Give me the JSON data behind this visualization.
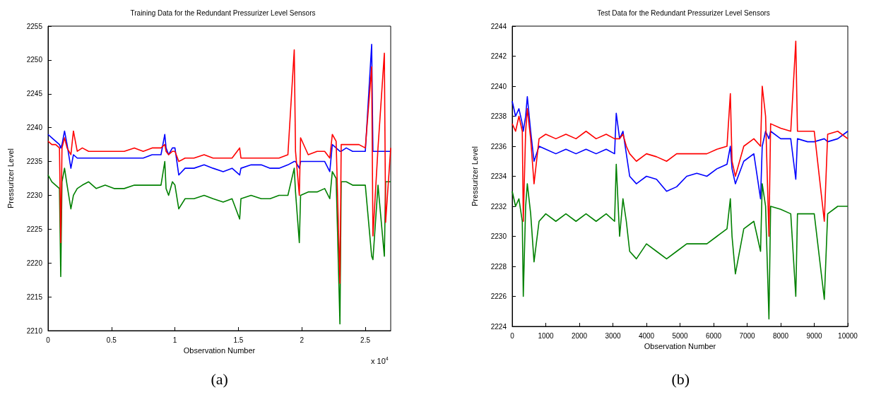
{
  "chart_data": [
    {
      "type": "line",
      "title": "Training Data for the Redundant Pressurizer Level Sensors",
      "xlabel": "Observation Number",
      "ylabel": "Pressurizer Level",
      "annotations": [
        "x 10$^{4}$",
        "(a)"
      ],
      "x": [
        0,
        0.03,
        0.06,
        0.09,
        0.1,
        0.11,
        0.13,
        0.15,
        0.18,
        0.2,
        0.23,
        0.27,
        0.32,
        0.38,
        0.45,
        0.52,
        0.6,
        0.68,
        0.75,
        0.82,
        0.89,
        0.92,
        0.93,
        0.95,
        0.98,
        1,
        1.03,
        1.08,
        1.15,
        1.23,
        1.3,
        1.38,
        1.45,
        1.51,
        1.52,
        1.6,
        1.68,
        1.75,
        1.82,
        1.89,
        1.94,
        1.95,
        1.98,
        1.99,
        2.05,
        2.12,
        2.18,
        2.22,
        2.24,
        2.27,
        2.3,
        2.31,
        2.35,
        2.4,
        2.45,
        2.5,
        2.55,
        2.56,
        2.6,
        2.65,
        2.66,
        2.7
      ],
      "series": [
        {
          "color": "#008000",
          "values": [
            2233,
            2232,
            2231.5,
            2231,
            2218,
            2232,
            2234,
            2231.5,
            2228,
            2230,
            2231,
            2231.5,
            2232,
            2231,
            2231.5,
            2231,
            2231,
            2231.5,
            2231.5,
            2231.5,
            2231.5,
            2235,
            2231,
            2230,
            2232,
            2231.5,
            2228,
            2229.5,
            2229.5,
            2230,
            2229.5,
            2229,
            2229.5,
            2226.5,
            2229.5,
            2230,
            2229.5,
            2229.5,
            2230,
            2230,
            2234,
            2230.5,
            2223,
            2230,
            2230.5,
            2230.5,
            2231,
            2229.5,
            2233.5,
            2232.5,
            2211,
            2232,
            2232,
            2231.5,
            2231.5,
            2231.5,
            2221,
            2220.5,
            2231.5,
            2221,
            2232,
            2232
          ]
        },
        {
          "color": "#0000ff",
          "values": [
            2239,
            2238.5,
            2238,
            2237.5,
            2237,
            2237.5,
            2239.5,
            2237.5,
            2234,
            2236,
            2235.5,
            2235.5,
            2235.5,
            2235.5,
            2235.5,
            2235.5,
            2235.5,
            2235.5,
            2235.5,
            2236,
            2236,
            2239,
            2237,
            2236,
            2237,
            2237,
            2233,
            2234,
            2234,
            2234.5,
            2234,
            2233.5,
            2234,
            2233,
            2234,
            2234.5,
            2234.5,
            2234,
            2234,
            2234.5,
            2235,
            2235,
            2234,
            2235,
            2235,
            2235,
            2235,
            2233.5,
            2237.5,
            2237,
            2236.5,
            2236.5,
            2237,
            2236.5,
            2236.5,
            2236.5,
            2252.3,
            2236.5,
            2236.5,
            2236.5,
            2236.5,
            2236.5
          ]
        },
        {
          "color": "#ff0000",
          "values": [
            2238,
            2237.5,
            2237.5,
            2237,
            2223,
            2237,
            2238.5,
            2237,
            2236,
            2239.5,
            2236.5,
            2237,
            2236.5,
            2236.5,
            2236.5,
            2236.5,
            2236.5,
            2237,
            2236.5,
            2237,
            2237,
            2237.5,
            2236.5,
            2236,
            2236.5,
            2236.5,
            2235,
            2235.5,
            2235.5,
            2236,
            2235.5,
            2235.5,
            2235.5,
            2237,
            2235.5,
            2235.5,
            2235.5,
            2235.5,
            2235.5,
            2236,
            2251.5,
            2236.5,
            2230,
            2238.5,
            2236,
            2236.5,
            2236.5,
            2235.5,
            2239,
            2238,
            2217,
            2237.5,
            2237.5,
            2237.5,
            2237.5,
            2237,
            2249,
            2224,
            2237,
            2251,
            2226,
            2237
          ]
        }
      ],
      "xlim": [
        0,
        2.7
      ],
      "xticks": [
        0,
        0.5,
        1,
        1.5,
        2,
        2.5
      ],
      "ylim": [
        2210,
        2255
      ],
      "yticks": [
        2210,
        2215,
        2220,
        2225,
        2230,
        2235,
        2240,
        2245,
        2250,
        2255
      ],
      "marker": "none",
      "line_style": "solid"
    },
    {
      "type": "line",
      "title": "Test Data for the Redundant Pressurizer Level Sensors",
      "xlabel": "Observation Number",
      "ylabel": "Pressurizer Level",
      "annotations": [
        "(b)"
      ],
      "x": [
        0,
        100,
        200,
        300,
        330,
        400,
        450,
        550,
        650,
        800,
        1000,
        1300,
        1600,
        1900,
        2200,
        2500,
        2800,
        3050,
        3100,
        3200,
        3300,
        3400,
        3500,
        3700,
        4000,
        4300,
        4600,
        4900,
        5200,
        5500,
        5800,
        6100,
        6400,
        6500,
        6550,
        6650,
        6900,
        7200,
        7400,
        7450,
        7550,
        7650,
        7700,
        8000,
        8300,
        8450,
        8500,
        8800,
        9000,
        9300,
        9400,
        9700,
        10000
      ],
      "series": [
        {
          "color": "#008000",
          "values": [
            2233,
            2232,
            2232.5,
            2231,
            2226,
            2232,
            2233.5,
            2231.5,
            2228.3,
            2231,
            2231.5,
            2231,
            2231.5,
            2231,
            2231.5,
            2231,
            2231.5,
            2231,
            2234.8,
            2230,
            2232.5,
            2231,
            2229,
            2228.5,
            2229.5,
            2229,
            2228.5,
            2229,
            2229.5,
            2229.5,
            2229.5,
            2230,
            2230.5,
            2232.5,
            2230,
            2227.5,
            2230.5,
            2231,
            2229,
            2233.5,
            2232,
            2224.5,
            2232,
            2231.8,
            2231.5,
            2226,
            2231.5,
            2231.5,
            2231.5,
            2225.8,
            2231.5,
            2232,
            2232
          ]
        },
        {
          "color": "#0000ff",
          "values": [
            2239,
            2238,
            2238.5,
            2237.5,
            2237,
            2238,
            2239.3,
            2237,
            2235,
            2236,
            2235.8,
            2235.5,
            2235.8,
            2235.5,
            2235.8,
            2235.5,
            2235.8,
            2235.5,
            2238.2,
            2236.5,
            2237,
            2235.5,
            2234,
            2233.5,
            2234,
            2233.8,
            2233,
            2233.3,
            2234,
            2234.2,
            2234,
            2234.5,
            2234.8,
            2236,
            2234.5,
            2233.5,
            2235,
            2235.5,
            2232.5,
            2236,
            2237,
            2236.5,
            2237,
            2236.5,
            2236.5,
            2233.8,
            2236.5,
            2236.3,
            2236.3,
            2236.5,
            2236.3,
            2236.5,
            2237
          ]
        },
        {
          "color": "#ff0000",
          "values": [
            2237.5,
            2237,
            2238,
            2237,
            2231,
            2237,
            2238.5,
            2236.5,
            2233.5,
            2236.5,
            2236.8,
            2236.5,
            2236.8,
            2236.5,
            2237,
            2236.5,
            2236.8,
            2236.5,
            2236.5,
            2236.5,
            2236.8,
            2236,
            2235.5,
            2235,
            2235.5,
            2235.3,
            2235,
            2235.5,
            2235.5,
            2235.5,
            2235.5,
            2235.8,
            2236,
            2239.5,
            2235,
            2234,
            2236,
            2236.5,
            2236,
            2240,
            2238,
            2230,
            2237.5,
            2237.2,
            2237,
            2243,
            2237,
            2237,
            2237,
            2231,
            2236.8,
            2237,
            2236.5
          ]
        }
      ],
      "xlim": [
        0,
        10000
      ],
      "xticks": [
        0,
        1000,
        2000,
        3000,
        4000,
        5000,
        6000,
        7000,
        8000,
        9000,
        10000
      ],
      "ylim": [
        2224,
        2244
      ],
      "yticks": [
        2224,
        2226,
        2228,
        2230,
        2232,
        2234,
        2236,
        2238,
        2240,
        2242,
        2244
      ],
      "marker": "none",
      "line_style": "solid"
    }
  ]
}
